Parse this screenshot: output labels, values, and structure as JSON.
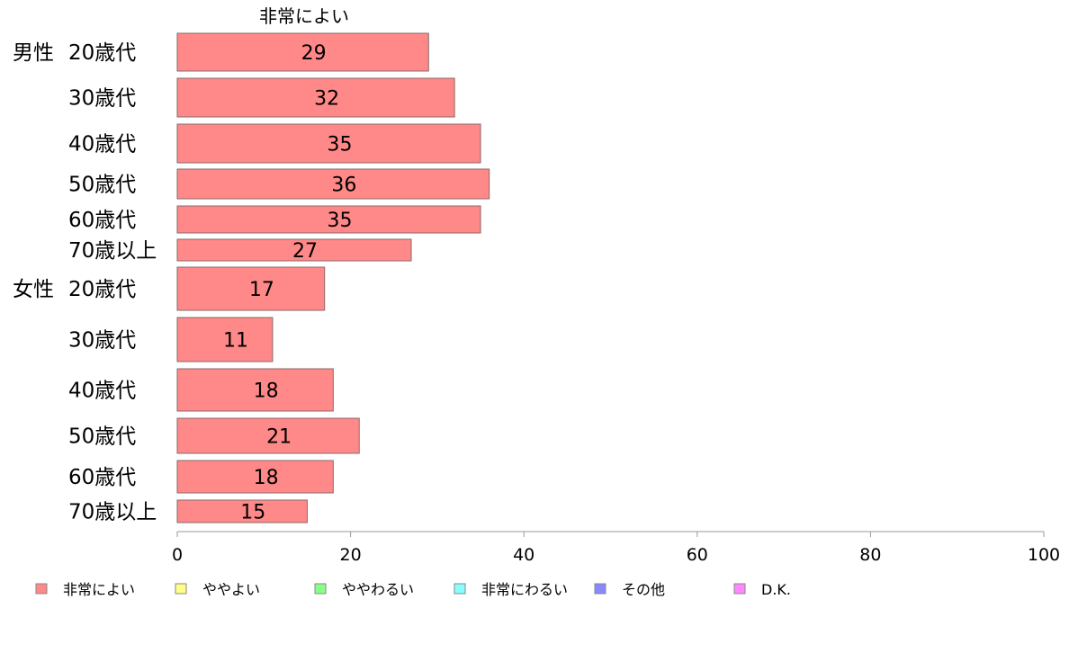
{
  "chart_data": {
    "type": "bar",
    "orientation": "horizontal",
    "title": "非常によい",
    "groups": [
      {
        "name": "男性",
        "categories": [
          "20歳代",
          "30歳代",
          "40歳代",
          "50歳代",
          "60歳代",
          "70歳以上"
        ],
        "values": [
          29,
          32,
          35,
          36,
          35,
          27
        ]
      },
      {
        "name": "女性",
        "categories": [
          "20歳代",
          "30歳代",
          "40歳代",
          "50歳代",
          "60歳代",
          "70歳以上"
        ],
        "values": [
          17,
          11,
          18,
          21,
          18,
          15
        ]
      }
    ],
    "xlim": [
      0,
      100
    ],
    "xticks": [
      "0",
      "20",
      "40",
      "60",
      "80",
      "100"
    ],
    "grid": false,
    "legend_position": "bottom",
    "legend": [
      {
        "label": "非常によい",
        "color": "#ff8888"
      },
      {
        "label": "ややよい",
        "color": "#ffff88"
      },
      {
        "label": "ややわるい",
        "color": "#88ff88"
      },
      {
        "label": "非常にわるい",
        "color": "#88ffff"
      },
      {
        "label": "その他",
        "color": "#8888ff"
      },
      {
        "label": "D.K.",
        "color": "#ff88ff"
      }
    ],
    "bar_color": "#ff8888"
  }
}
